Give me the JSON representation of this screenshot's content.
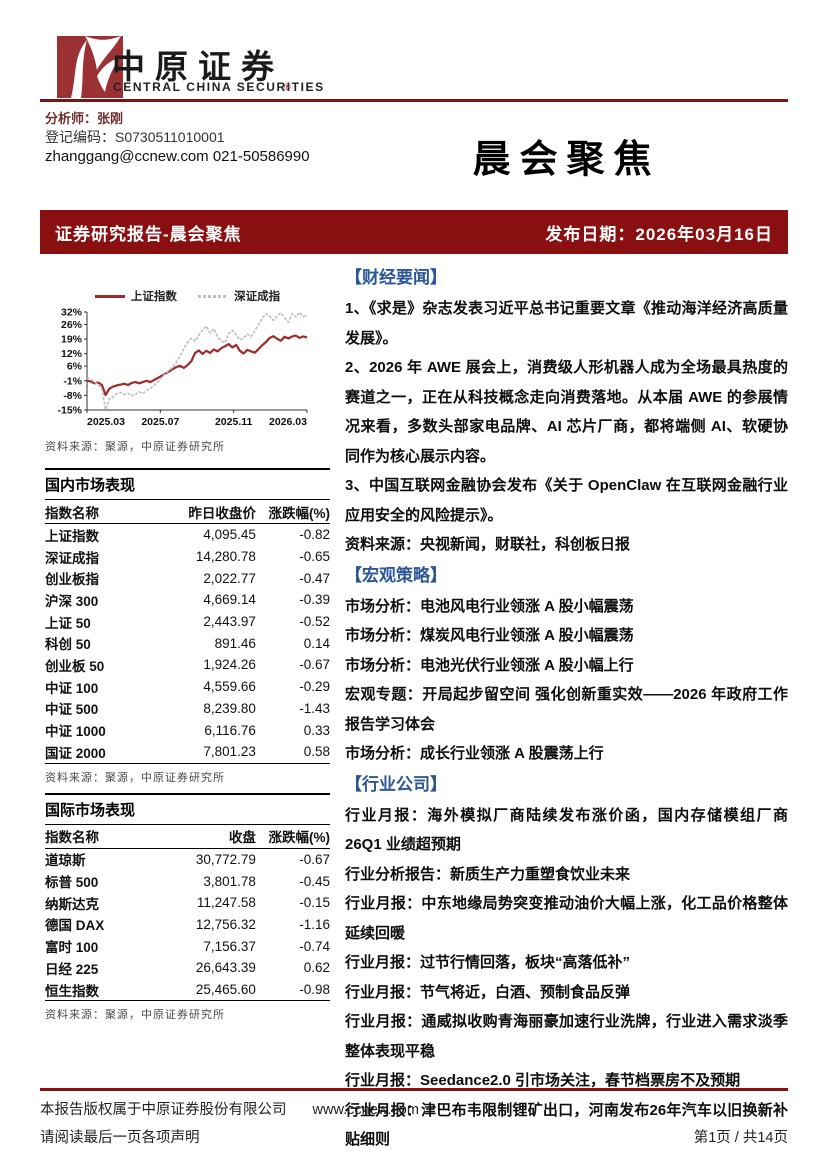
{
  "brand": {
    "name_cn": "中原证券",
    "name_en": "CENTRAL CHINA SECURITIES",
    "reg_mark": "®"
  },
  "analyst": {
    "name_line": "分析师：张刚",
    "reg_code": "登记编码：S0730511010001",
    "contact": "zhanggang@ccnew.com 021-50586990"
  },
  "report_title": "晨会聚焦",
  "banner": {
    "left": "证券研究报告-晨会聚焦",
    "right": "发布日期：2026年03月16日"
  },
  "colors": {
    "banner_red": "#8a0f11",
    "logo_red": "#9c3134",
    "section_blue": "#2b5797",
    "sh_line_red": "#9e2a2b",
    "sz_line_gray": "#bfbfbf"
  },
  "chart_data": {
    "type": "line",
    "title": "",
    "xlabel": "",
    "ylabel": "",
    "ylim": [
      -15,
      32
    ],
    "yticks": [
      32,
      26,
      19,
      12,
      6,
      -1,
      -8,
      -15
    ],
    "xticks": [
      "2025.03",
      "2025.07",
      "2025.11",
      "2026.03"
    ],
    "grid": false,
    "legend_position": "top",
    "series": [
      {
        "name": "上证指数",
        "color": "#9e2a2b",
        "width": 2.2,
        "values": [
          -1.0,
          -1.3,
          -2.2,
          -1.8,
          -3.0,
          -7.8,
          -4.8,
          -3.8,
          -3.2,
          -2.8,
          -2.4,
          -3.0,
          -2.0,
          -1.6,
          -2.2,
          -1.6,
          -1.0,
          -1.6,
          -0.6,
          0.4,
          1.4,
          2.4,
          3.4,
          4.6,
          5.6,
          6.2,
          5.2,
          6.6,
          8.5,
          12.4,
          13.6,
          11.9,
          13.4,
          12.4,
          14.0,
          13.1,
          14.6,
          15.6,
          16.6,
          15.0,
          16.2,
          13.4,
          12.1,
          13.8,
          13.1,
          12.5,
          14.2,
          16.1,
          17.6,
          19.6,
          20.4,
          19.1,
          18.2,
          20.1,
          19.3,
          20.3,
          20.7,
          19.6,
          20.3,
          19.8
        ]
      },
      {
        "name": "深证成指",
        "color": "#bfbfbf",
        "width": 1.7,
        "dash": "3 1.5",
        "values": [
          0.5,
          -0.3,
          -1.5,
          -2.8,
          -5.0,
          -14.8,
          -9.5,
          -8.6,
          -7.2,
          -6.6,
          -7.6,
          -7.0,
          -8.2,
          -7.4,
          -6.2,
          -7.2,
          -5.6,
          -4.6,
          -3.2,
          -1.6,
          0.5,
          2.4,
          4.0,
          5.6,
          8.0,
          11.0,
          14.5,
          17.5,
          19.4,
          18.0,
          21.0,
          23.4,
          25.2,
          22.0,
          24.0,
          20.4,
          18.2,
          17.2,
          21.8,
          23.2,
          21.0,
          18.6,
          19.4,
          21.4,
          20.2,
          23.0,
          26.0,
          29.0,
          31.2,
          30.0,
          28.0,
          30.2,
          31.6,
          29.2,
          27.2,
          31.2,
          29.6,
          31.8,
          29.8,
          30.4
        ]
      }
    ],
    "source": "资料来源：聚源，中原证券研究所"
  },
  "domestic_table": {
    "title": "国内市场表现",
    "headers": [
      "指数名称",
      "昨日收盘价",
      "涨跌幅(%)"
    ],
    "rows": [
      [
        "上证指数",
        "4,095.45",
        "-0.82"
      ],
      [
        "深证成指",
        "14,280.78",
        "-0.65"
      ],
      [
        "创业板指",
        "2,022.77",
        "-0.47"
      ],
      [
        "沪深 300",
        "4,669.14",
        "-0.39"
      ],
      [
        "上证 50",
        "2,443.97",
        "-0.52"
      ],
      [
        "科创 50",
        "891.46",
        "0.14"
      ],
      [
        "创业板 50",
        "1,924.26",
        "-0.67"
      ],
      [
        "中证 100",
        "4,559.66",
        "-0.29"
      ],
      [
        "中证 500",
        "8,239.80",
        "-1.43"
      ],
      [
        "中证 1000",
        "6,116.76",
        "0.33"
      ],
      [
        "国证 2000",
        "7,801.23",
        "0.58"
      ]
    ],
    "source": "资料来源：聚源，中原证券研究所"
  },
  "international_table": {
    "title": "国际市场表现",
    "headers": [
      "指数名称",
      "收盘",
      "涨跌幅(%)"
    ],
    "rows": [
      [
        "道琼斯",
        "30,772.79",
        "-0.67"
      ],
      [
        "标普 500",
        "3,801.78",
        "-0.45"
      ],
      [
        "纳斯达克",
        "11,247.58",
        "-0.15"
      ],
      [
        "德国 DAX",
        "12,756.32",
        "-1.16"
      ],
      [
        "富时 100",
        "7,156.37",
        "-0.74"
      ],
      [
        "日经 225",
        "26,643.39",
        "0.62"
      ],
      [
        "恒生指数",
        "25,465.60",
        "-0.98"
      ]
    ],
    "source": "资料来源：聚源，中原证券研究所"
  },
  "right_sections": [
    {
      "id": "finance-news",
      "heading": "【财经要闻】",
      "items": [
        "1、《求是》杂志发表习近平总书记重要文章《推动海洋经济高质量发展》。",
        "2、2026 年 AWE 展会上，消费级人形机器人成为全场最具热度的赛道之一，正在从科技概念走向消费落地。从本届 AWE 的参展情况来看，多数头部家电品牌、AI 芯片厂商，都将端侧 AI、软硬协同作为核心展示内容。",
        "3、中国互联网金融协会发布《关于 OpenClaw 在互联网金融行业应用安全的风险提示》。"
      ],
      "source": "资料来源：央视新闻，财联社，科创板日报"
    },
    {
      "id": "macro-strategy",
      "heading": "【宏观策略】",
      "items": [
        "市场分析：电池风电行业领涨 A 股小幅震荡",
        "市场分析：煤炭风电行业领涨 A 股小幅震荡",
        "市场分析：电池光伏行业领涨 A 股小幅上行",
        "宏观专题：开局起步留空间 强化创新重实效——2026 年政府工作报告学习体会",
        "市场分析：成长行业领涨 A 股震荡上行"
      ]
    },
    {
      "id": "industry-company",
      "heading": "【行业公司】",
      "items": [
        "行业月报：海外模拟厂商陆续发布涨价函，国内存储模组厂商 26Q1 业绩超预期",
        "行业分析报告：新质生产力重塑食饮业未来",
        "行业月报：中东地缘局势突变推动油价大幅上涨，化工品价格整体延续回暖",
        "行业月报：过节行情回落，板块“高落低补”",
        "行业月报：节气将近，白酒、预制食品反弹",
        "行业月报：通威拟收购青海丽豪加速行业洗牌，行业进入需求淡季整体表现平稳",
        "行业月报：Seedance2.0 引市场关注，春节档票房不及预期",
        "行业月报：津巴布韦限制锂矿出口，河南发布26年汽车以旧换新补贴细则"
      ]
    }
  ],
  "footer": {
    "copyright": "本报告版权属于中原证券股份有限公司",
    "url": "www.ccnew.com",
    "disclaimer": "请阅读最后一页各项声明",
    "page_number": "第1页 / 共14页"
  }
}
